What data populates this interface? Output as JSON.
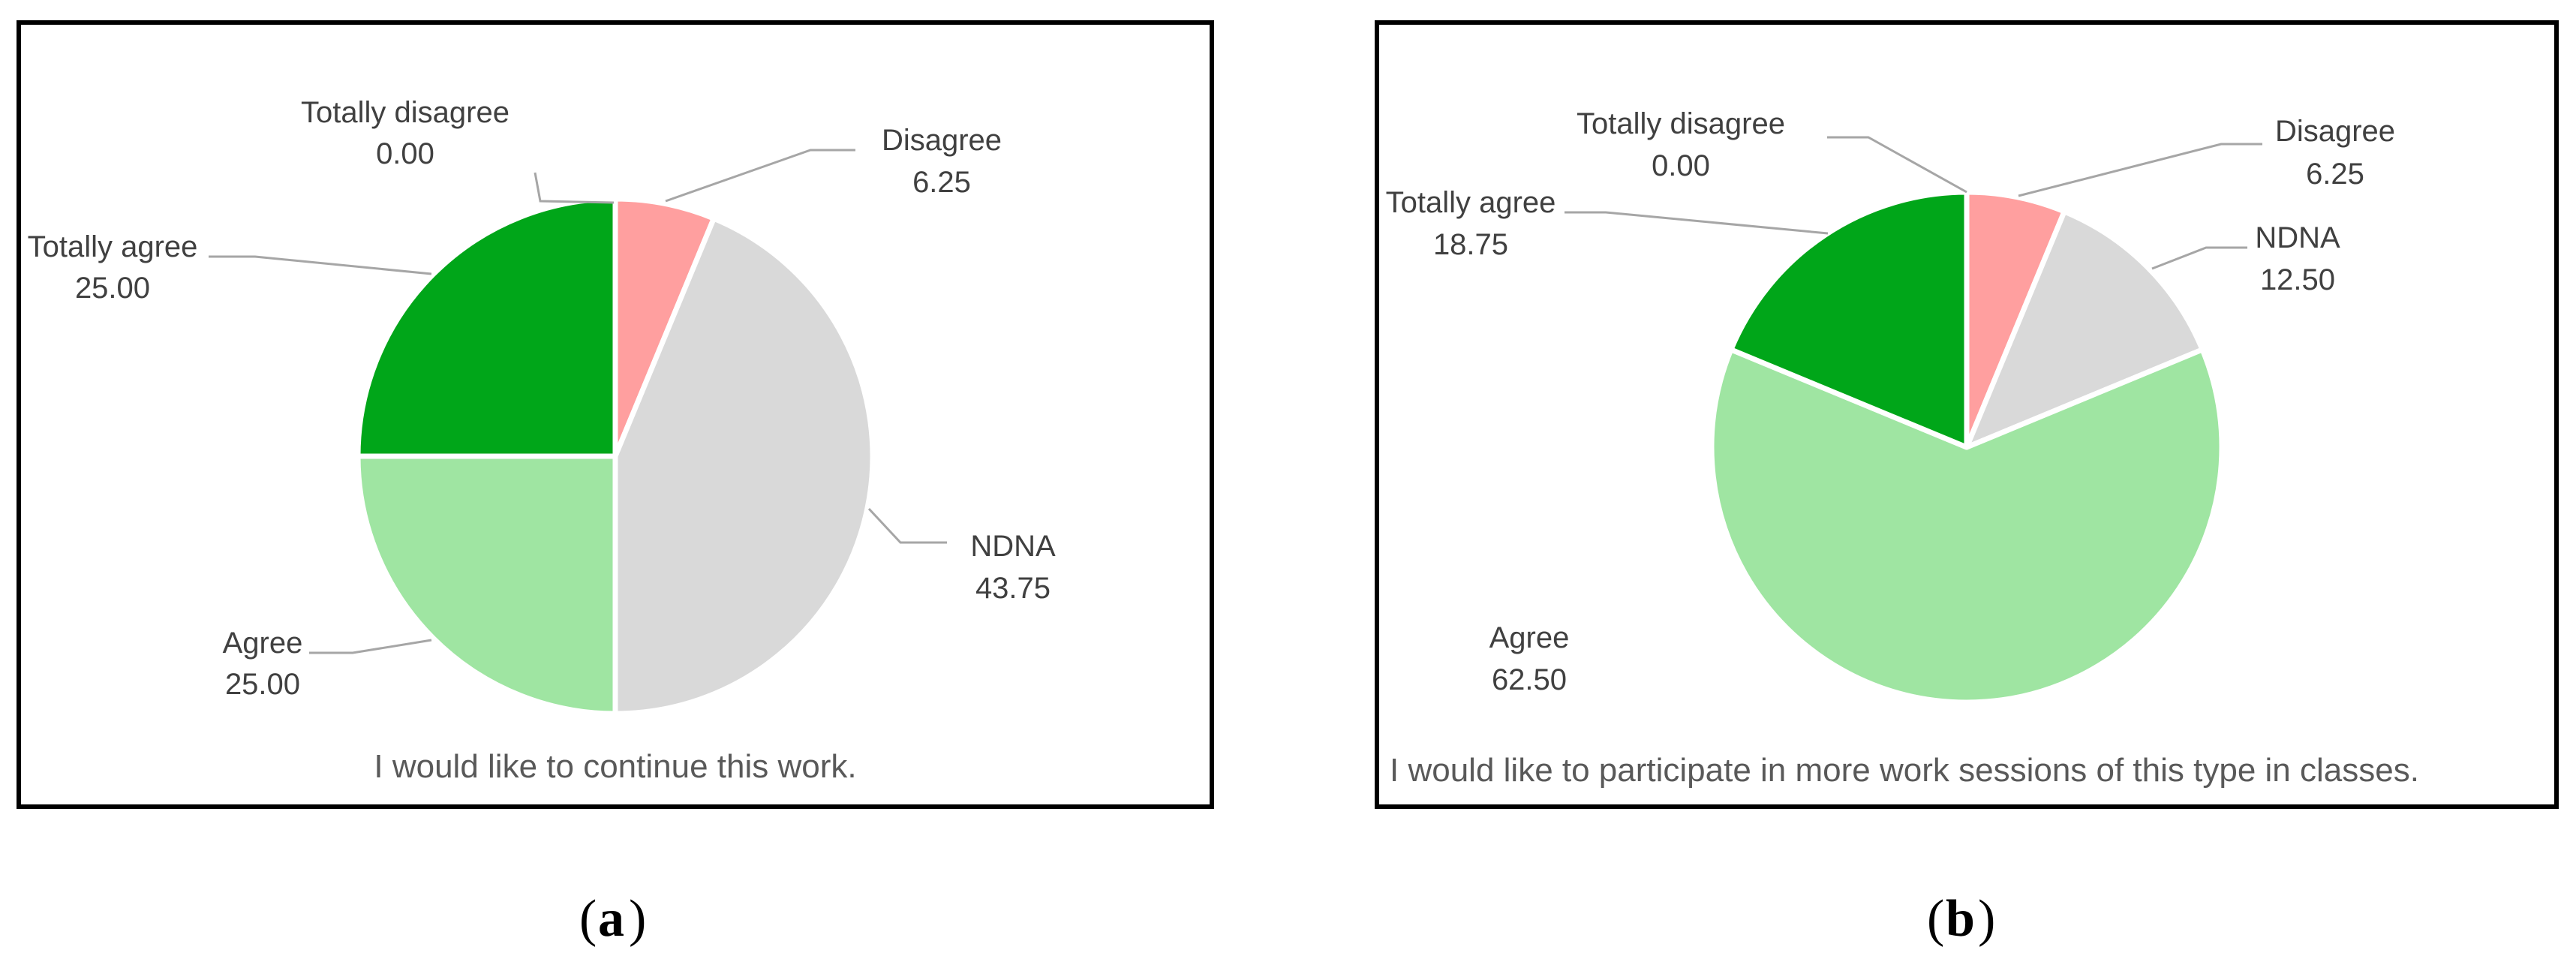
{
  "figure_labels": [
    "a",
    "b"
  ],
  "palette": {
    "Totally disagree": "#ff0000",
    "Disagree": "#ff9f9f",
    "NDNA": "#d9d9d9",
    "Agree": "#9fe5a2",
    "Totally agree": "#00a619"
  },
  "chart_data": [
    {
      "type": "pie",
      "title": "I would like to continue this work.",
      "categories": [
        "Totally disagree",
        "Disagree",
        "NDNA",
        "Agree",
        "Totally agree"
      ],
      "values": [
        0.0,
        6.25,
        43.75,
        25.0,
        25.0
      ],
      "value_labels": [
        "0.00",
        "6.25",
        "43.75",
        "25.00",
        "25.00"
      ],
      "legend": "none",
      "data_labels": "outside with leader lines"
    },
    {
      "type": "pie",
      "title": "I would like to participate in more work sessions of this type in classes.",
      "categories": [
        "Totally disagree",
        "Disagree",
        "NDNA",
        "Agree",
        "Totally agree"
      ],
      "values": [
        0.0,
        6.25,
        12.5,
        62.5,
        18.75
      ],
      "value_labels": [
        "0.00",
        "6.25",
        "12.50",
        "62.50",
        "18.75"
      ],
      "legend": "none",
      "data_labels": "outside with leader lines"
    }
  ]
}
